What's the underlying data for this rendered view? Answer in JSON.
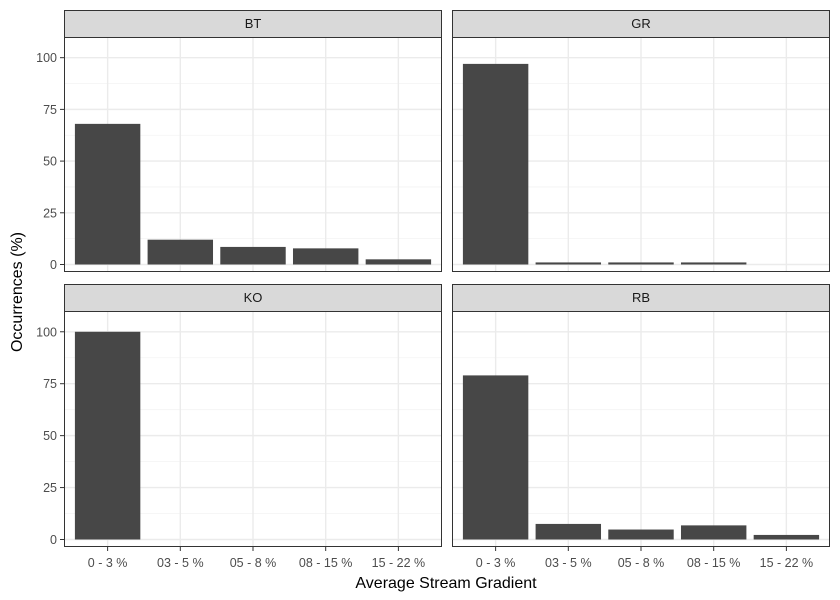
{
  "chart_data": {
    "type": "bar",
    "layout": "facet-grid-2x2",
    "xlabel": "Average Stream Gradient",
    "ylabel": "Occurrences (%)",
    "ylim": [
      0,
      110
    ],
    "yticks": [
      0,
      25,
      50,
      75,
      100
    ],
    "categories": [
      "0 - 3 %",
      "03 - 5 %",
      "05 - 8 %",
      "08 - 15 %",
      "15 - 22 %"
    ],
    "grid": true,
    "colors": {
      "bar": "#474747",
      "panel_border": "#333333",
      "strip_fill": "#d9d9d9",
      "grid_major": "#ebebeb",
      "grid_minor": "#f3f3f3"
    },
    "facets": [
      {
        "name": "BT",
        "values": [
          68,
          12,
          8.5,
          7.8,
          2.5
        ]
      },
      {
        "name": "GR",
        "values": [
          97,
          1,
          1,
          1,
          0
        ]
      },
      {
        "name": "KO",
        "values": [
          100,
          0,
          0,
          0,
          0
        ]
      },
      {
        "name": "RB",
        "values": [
          79,
          7.5,
          4.8,
          6.8,
          2.2
        ]
      }
    ]
  }
}
